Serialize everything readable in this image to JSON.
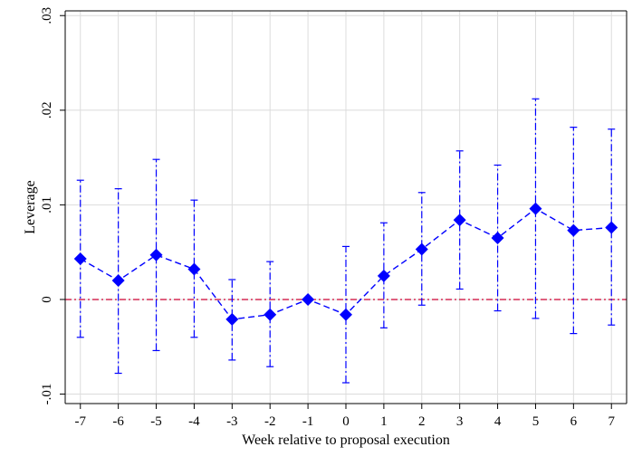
{
  "chart_data": {
    "type": "scatter",
    "xlabel": "Week relative to proposal execution",
    "ylabel": "Leverage",
    "x": [
      -7,
      -6,
      -5,
      -4,
      -3,
      -2,
      -1,
      0,
      1,
      2,
      3,
      4,
      5,
      6,
      7
    ],
    "x_tick_labels": [
      "-7",
      "-6",
      "-5",
      "-4",
      "-3",
      "-2",
      "-1",
      "0",
      "1",
      "2",
      "3",
      "4",
      "5",
      "6",
      "7"
    ],
    "y_ticks": [
      -0.01,
      0,
      0.01,
      0.02,
      0.03
    ],
    "y_tick_labels": [
      "-.01",
      "0",
      ".01",
      ".02",
      ".03"
    ],
    "ylim": [
      -0.011,
      0.0305
    ],
    "xlim": [
      -7.4,
      7.4
    ],
    "grid": true,
    "series": [
      {
        "values": [
          0.0043,
          0.002,
          0.0047,
          0.0032,
          -0.0021,
          -0.0016,
          0.0,
          -0.0016,
          0.0025,
          0.0053,
          0.0084,
          0.0065,
          0.0096,
          0.0073,
          0.0076
        ],
        "ci_low": [
          -0.004,
          -0.0078,
          -0.0054,
          -0.004,
          -0.0064,
          -0.0071,
          0.0,
          -0.0088,
          -0.003,
          -0.0006,
          0.0011,
          -0.0012,
          -0.002,
          -0.0036,
          -0.0027
        ],
        "ci_high": [
          0.0126,
          0.0117,
          0.0148,
          0.0105,
          0.0021,
          0.004,
          0.0,
          0.0056,
          0.0081,
          0.0113,
          0.0157,
          0.0142,
          0.0212,
          0.0182,
          0.018
        ]
      }
    ],
    "reference_line": {
      "y": 0
    },
    "colors": {
      "series": "#0000ff",
      "reference": "#cc0033",
      "grid": "#dcdcdc",
      "axis": "#000000"
    }
  }
}
